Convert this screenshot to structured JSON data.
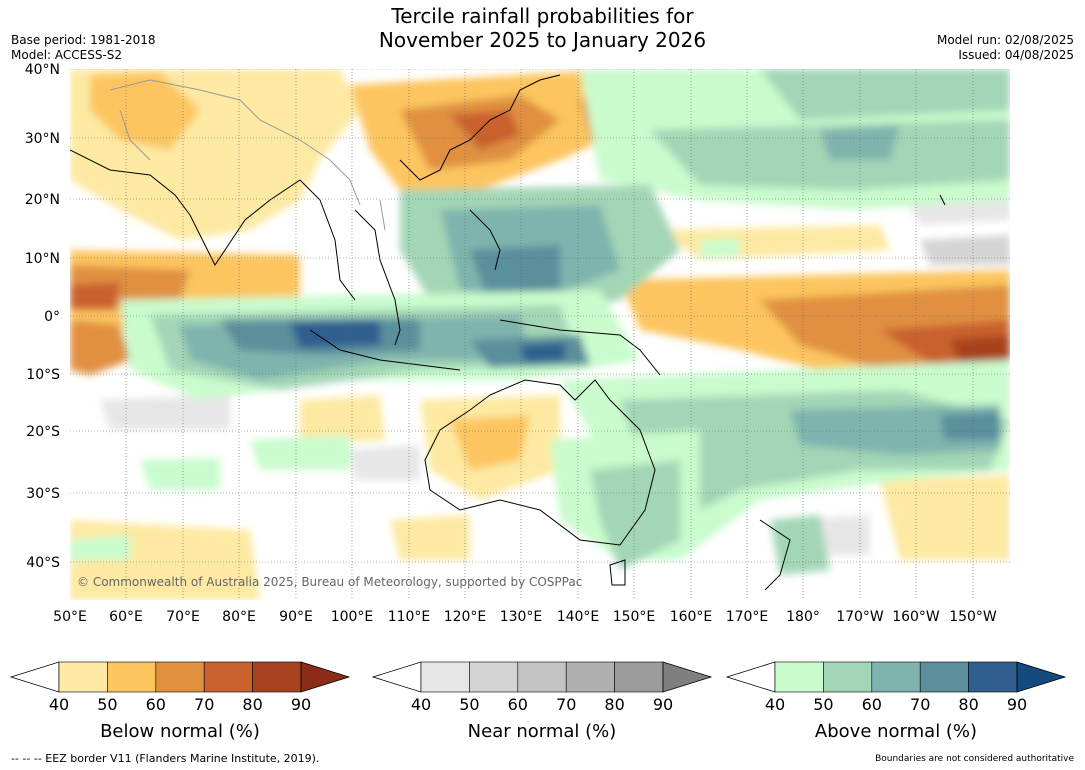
{
  "title_line1": "Tercile rainfall probabilities for",
  "title_line2": "November 2025 to January 2026",
  "base_period": "Base period: 1981-2018",
  "model": "Model: ACCESS-S2",
  "model_run": "Model run: 02/08/2025",
  "issued": "Issued: 04/08/2025",
  "copyright": "© Commonwealth of Australia 2025, Bureau of Meteorology, supported by COSPPac",
  "lat_labels": [
    "40°N",
    "30°N",
    "20°N",
    "10°N",
    "0°",
    "10°S",
    "20°S",
    "30°S",
    "40°S"
  ],
  "lon_labels": [
    "50°E",
    "60°E",
    "70°E",
    "80°E",
    "90°E",
    "100°E",
    "110°E",
    "120°E",
    "130°E",
    "140°E",
    "150°E",
    "160°E",
    "170°E",
    "180°",
    "170°W",
    "160°W",
    "150°W"
  ],
  "colorbars": [
    {
      "label": "Below normal (%)",
      "ticks": [
        "40",
        "50",
        "60",
        "70",
        "80",
        "90"
      ],
      "colors": [
        "#ffffff",
        "#fde9a2",
        "#fcc55e",
        "#e0903f",
        "#c9602e",
        "#a8421f",
        "#8a2c17"
      ]
    },
    {
      "label": "Near normal (%)",
      "ticks": [
        "40",
        "50",
        "60",
        "70",
        "80",
        "90"
      ],
      "colors": [
        "#ffffff",
        "#e6e6e6",
        "#d4d4d4",
        "#c4c4c4",
        "#b0b0b0",
        "#9b9b9b",
        "#7f7f7f"
      ]
    },
    {
      "label": "Above normal (%)",
      "ticks": [
        "40",
        "50",
        "60",
        "70",
        "80",
        "90"
      ],
      "colors": [
        "#ffffff",
        "#c9fbcd",
        "#a3d6b6",
        "#7fb4ae",
        "#5a8f9c",
        "#2f5f8f",
        "#154a7e"
      ]
    }
  ],
  "footer_left": "--  --  -- EEZ border V11 (Flanders Marine Institute, 2019).",
  "footer_right": "Boundaries are not considered authoritative"
}
